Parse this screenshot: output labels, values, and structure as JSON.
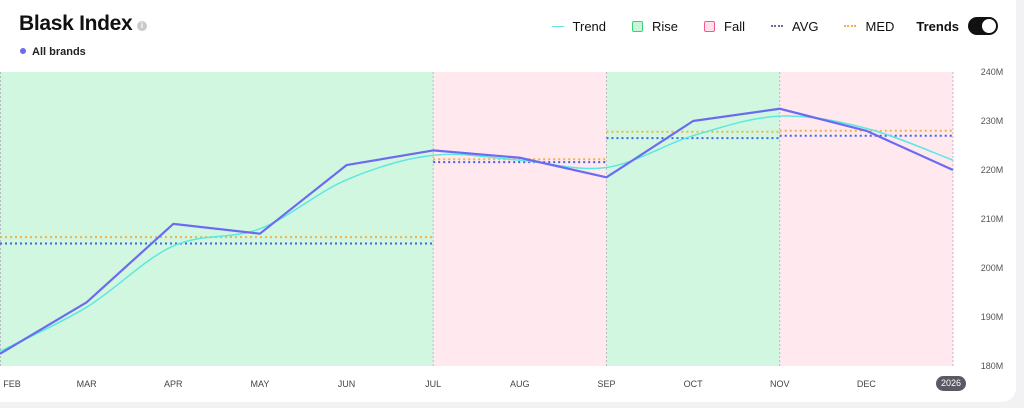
{
  "header": {
    "title": "Blask Index",
    "info_glyph": "i",
    "brand_label": "All brands"
  },
  "legend": {
    "trend": "Trend",
    "rise": "Rise",
    "fall": "Fall",
    "avg": "AVG",
    "med": "MED",
    "trends_toggle": "Trends",
    "trends_on": true
  },
  "colors": {
    "series": "#6b6bf0",
    "trend": "#5ce8e0",
    "rise_fill": "#d2f7e1",
    "fall_fill": "#ffe9ef",
    "avg": "#3f63e8",
    "med": "#f0b24a"
  },
  "chart_data": {
    "type": "line",
    "x_labels": [
      "FEB",
      "MAR",
      "APR",
      "MAY",
      "JUN",
      "JUL",
      "AUG",
      "SEP",
      "OCT",
      "NOV",
      "DEC"
    ],
    "year_badge": "2026",
    "y_ticks": [
      "180M",
      "190M",
      "200M",
      "210M",
      "220M",
      "230M",
      "240M"
    ],
    "ylim": [
      180,
      240
    ],
    "y_unit": "M",
    "grid": false,
    "legend_position": "top-right",
    "series": [
      {
        "name": "All brands",
        "x": [
          0,
          1,
          2,
          3,
          4,
          5,
          6,
          7,
          8,
          9,
          10,
          11
        ],
        "values": [
          182.5,
          193,
          209,
          207,
          221,
          224,
          222.5,
          218.5,
          230,
          232.5,
          228,
          220
        ]
      }
    ],
    "trend": {
      "x": [
        0,
        1,
        2,
        3,
        4,
        5,
        6,
        7,
        8,
        9,
        10,
        11
      ],
      "values": [
        183,
        192,
        204.5,
        208,
        218,
        223,
        222,
        220.5,
        227,
        231,
        228.5,
        222
      ]
    },
    "periods": [
      {
        "type": "rise",
        "from": 0,
        "to": 5,
        "avg": 205,
        "med": 206.3
      },
      {
        "type": "fall",
        "from": 5,
        "to": 7,
        "avg": 221.6,
        "med": 222.2
      },
      {
        "type": "rise",
        "from": 7,
        "to": 9,
        "avg": 226.5,
        "med": 227.8
      },
      {
        "type": "fall",
        "from": 9,
        "to": 11,
        "avg": 227,
        "med": 228
      }
    ]
  }
}
